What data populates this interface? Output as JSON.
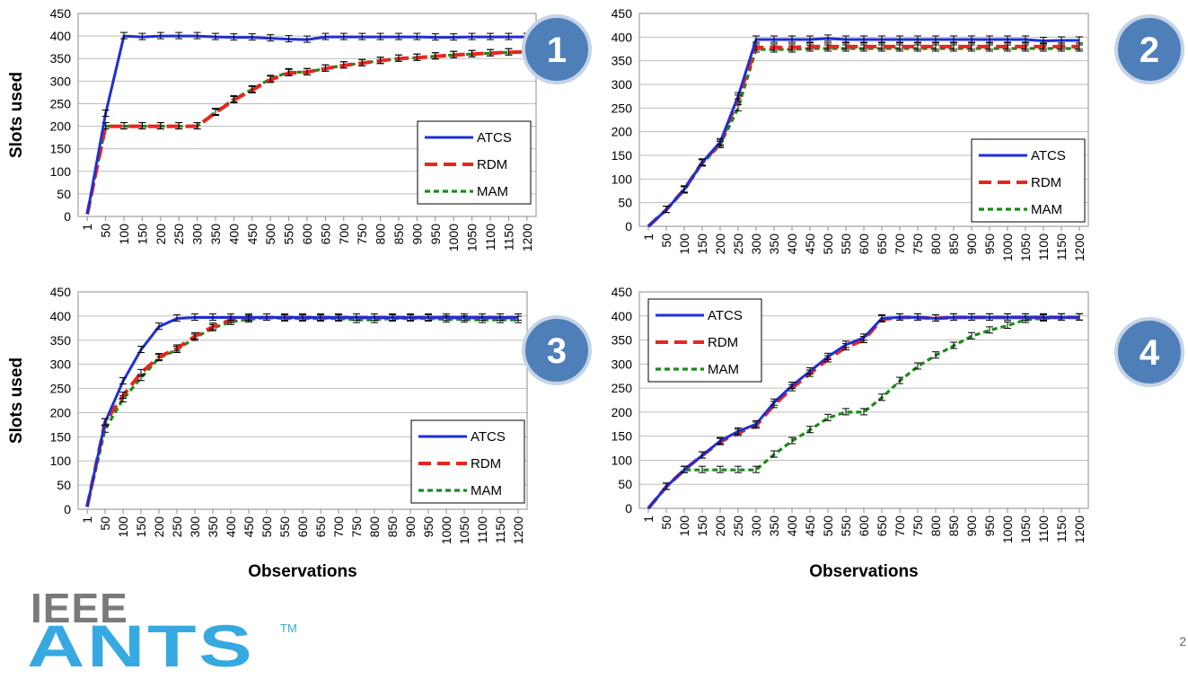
{
  "logo": {
    "line1": "IEEE",
    "line2": "ANTS",
    "trademark": "TM"
  },
  "page_number": "2",
  "legend_labels": [
    "ATCS",
    "RDM",
    "MAM"
  ],
  "colors": {
    "ATCS": "#1f2fd6",
    "RDM": "#e8261f",
    "MAM": "#1a8a1a",
    "badge": "#4f7fb8",
    "badge_border": "#c5d3e6"
  },
  "chart_data": [
    {
      "type": "line",
      "badge": "1",
      "ylabel": "Slots used",
      "xlabel": "",
      "ylim": [
        0,
        450
      ],
      "yticks": [
        0,
        50,
        100,
        150,
        200,
        250,
        300,
        350,
        400,
        450
      ],
      "categories": [
        "1",
        "50",
        "100",
        "150",
        "200",
        "250",
        "300",
        "350",
        "400",
        "450",
        "500",
        "550",
        "600",
        "650",
        "700",
        "750",
        "800",
        "850",
        "900",
        "950",
        "1000",
        "1050",
        "1100",
        "1150",
        "1200"
      ],
      "legend_position": "right",
      "series": [
        {
          "name": "ATCS",
          "values": [
            5,
            228,
            400,
            398,
            400,
            400,
            400,
            398,
            397,
            397,
            395,
            393,
            392,
            398,
            398,
            398,
            398,
            398,
            398,
            397,
            397,
            398,
            398,
            398,
            398
          ]
        },
        {
          "name": "RDM",
          "values": [
            5,
            200,
            200,
            200,
            200,
            200,
            200,
            230,
            258,
            280,
            303,
            318,
            320,
            328,
            335,
            340,
            345,
            350,
            352,
            355,
            358,
            360,
            362,
            364,
            365
          ]
        },
        {
          "name": "MAM",
          "values": [
            5,
            200,
            200,
            200,
            200,
            200,
            200,
            232,
            260,
            282,
            305,
            320,
            320,
            328,
            335,
            340,
            345,
            350,
            352,
            355,
            358,
            360,
            362,
            364,
            365
          ]
        }
      ]
    },
    {
      "type": "line",
      "badge": "2",
      "ylabel": "",
      "xlabel": "",
      "ylim": [
        0,
        450
      ],
      "yticks": [
        0,
        50,
        100,
        150,
        200,
        250,
        300,
        350,
        400,
        450
      ],
      "categories": [
        "1",
        "50",
        "100",
        "150",
        "200",
        "250",
        "300",
        "350",
        "400",
        "450",
        "500",
        "550",
        "600",
        "650",
        "700",
        "750",
        "800",
        "850",
        "900",
        "950",
        "1000",
        "1050",
        "1100",
        "1150",
        "1200"
      ],
      "legend_position": "bottom-right",
      "series": [
        {
          "name": "ATCS",
          "values": [
            0,
            35,
            78,
            135,
            178,
            275,
            395,
            395,
            395,
            395,
            397,
            395,
            395,
            395,
            395,
            395,
            395,
            395,
            395,
            395,
            395,
            395,
            392,
            393,
            393
          ]
        },
        {
          "name": "RDM",
          "values": [
            0,
            35,
            78,
            135,
            175,
            270,
            378,
            378,
            378,
            380,
            380,
            380,
            380,
            380,
            380,
            380,
            380,
            380,
            380,
            380,
            380,
            380,
            380,
            380,
            380
          ]
        },
        {
          "name": "MAM",
          "values": [
            0,
            35,
            76,
            133,
            172,
            250,
            374,
            374,
            374,
            376,
            376,
            376,
            376,
            376,
            376,
            376,
            376,
            376,
            376,
            376,
            376,
            376,
            376,
            376,
            376
          ]
        }
      ]
    },
    {
      "type": "line",
      "badge": "3",
      "ylabel": "Slots used",
      "xlabel": "Observations",
      "ylim": [
        0,
        450
      ],
      "yticks": [
        0,
        50,
        100,
        150,
        200,
        250,
        300,
        350,
        400,
        450
      ],
      "categories": [
        "1",
        "50",
        "100",
        "150",
        "200",
        "250",
        "300",
        "350",
        "400",
        "450",
        "500",
        "550",
        "600",
        "650",
        "700",
        "750",
        "800",
        "850",
        "900",
        "950",
        "1000",
        "1050",
        "1100",
        "1150",
        "1200"
      ],
      "legend_position": "bottom-right",
      "series": [
        {
          "name": "ATCS",
          "values": [
            5,
            180,
            265,
            330,
            378,
            395,
            397,
            397,
            397,
            397,
            397,
            397,
            397,
            397,
            397,
            397,
            397,
            397,
            397,
            397,
            397,
            397,
            397,
            397,
            397
          ]
        },
        {
          "name": "RDM",
          "values": [
            5,
            180,
            235,
            282,
            315,
            333,
            358,
            378,
            392,
            396,
            397,
            397,
            397,
            397,
            397,
            397,
            397,
            397,
            397,
            397,
            397,
            397,
            397,
            397,
            397
          ]
        },
        {
          "name": "MAM",
          "values": [
            5,
            165,
            228,
            272,
            313,
            330,
            355,
            375,
            388,
            393,
            397,
            395,
            395,
            395,
            395,
            392,
            392,
            395,
            395,
            395,
            393,
            393,
            392,
            392,
            392
          ]
        }
      ]
    },
    {
      "type": "line",
      "badge": "4",
      "ylabel": "",
      "xlabel": "Observations",
      "ylim": [
        0,
        450
      ],
      "yticks": [
        0,
        50,
        100,
        150,
        200,
        250,
        300,
        350,
        400,
        450
      ],
      "categories": [
        "1",
        "50",
        "100",
        "150",
        "200",
        "250",
        "300",
        "350",
        "400",
        "450",
        "500",
        "550",
        "600",
        "650",
        "700",
        "750",
        "800",
        "850",
        "900",
        "950",
        "1000",
        "1050",
        "1100",
        "1150",
        "1200"
      ],
      "legend_position": "top-left",
      "series": [
        {
          "name": "ATCS",
          "values": [
            0,
            45,
            80,
            110,
            140,
            160,
            175,
            220,
            255,
            285,
            315,
            340,
            355,
            395,
            397,
            397,
            395,
            397,
            397,
            397,
            397,
            397,
            397,
            397,
            397
          ]
        },
        {
          "name": "RDM",
          "values": [
            0,
            45,
            80,
            110,
            138,
            157,
            172,
            215,
            250,
            280,
            310,
            335,
            350,
            393,
            397,
            397,
            395,
            397,
            397,
            397,
            397,
            397,
            397,
            397,
            397
          ]
        },
        {
          "name": "MAM",
          "values": [
            0,
            45,
            80,
            80,
            80,
            80,
            80,
            112,
            140,
            163,
            188,
            200,
            200,
            230,
            265,
            295,
            318,
            338,
            358,
            370,
            380,
            392,
            395,
            397,
            397
          ]
        }
      ]
    }
  ]
}
